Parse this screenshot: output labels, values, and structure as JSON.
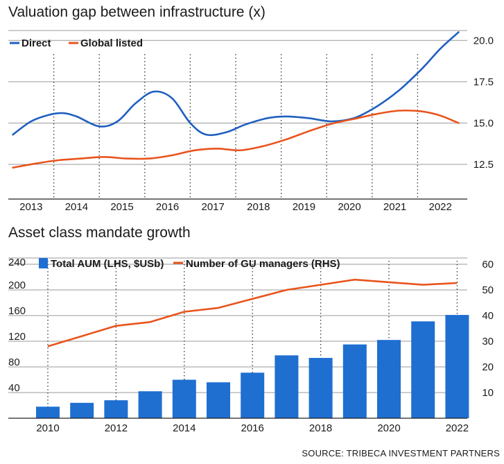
{
  "colors": {
    "direct": "#1f5fbf",
    "global": "#e8541c",
    "bar": "#1f6fd1",
    "grid": "#555555",
    "axis": "#333333"
  },
  "chart_data": [
    {
      "type": "line",
      "title": "Valuation gap between infrastructure (x)",
      "x_ticks": [
        "2013",
        "2014",
        "2015",
        "2016",
        "2017",
        "2018",
        "2019",
        "2020",
        "2021",
        "2022"
      ],
      "y_ticks": [
        "20.0",
        "17.5",
        "15.0",
        "12.5"
      ],
      "ylim": [
        10.4,
        20.6
      ],
      "y_axis_side": "right",
      "legend": "top-left",
      "series": [
        {
          "name": "Direct",
          "color": "#1f5fbf",
          "x": [
            2012.6,
            2013.0,
            2013.4,
            2013.7,
            2014.0,
            2014.5,
            2014.9,
            2015.3,
            2015.7,
            2016.1,
            2016.5,
            2016.85,
            2017.3,
            2017.7,
            2018.2,
            2018.6,
            2019.1,
            2019.6,
            2020.1,
            2020.6,
            2021.1,
            2021.6,
            2022.0,
            2022.4
          ],
          "values": [
            14.3,
            15.1,
            15.5,
            15.6,
            15.4,
            14.8,
            15.1,
            16.2,
            16.9,
            16.5,
            15.0,
            14.3,
            14.45,
            14.9,
            15.3,
            15.4,
            15.3,
            15.1,
            15.3,
            16.0,
            17.0,
            18.3,
            19.5,
            20.5
          ]
        },
        {
          "name": "Global listed",
          "color": "#e8541c",
          "x": [
            2012.6,
            2013.1,
            2013.6,
            2014.1,
            2014.6,
            2015.1,
            2015.6,
            2016.1,
            2016.6,
            2017.1,
            2017.6,
            2018.1,
            2018.6,
            2019.1,
            2019.6,
            2020.1,
            2020.6,
            2021.1,
            2021.6,
            2022.0,
            2022.4
          ],
          "values": [
            12.3,
            12.55,
            12.75,
            12.85,
            12.95,
            12.85,
            12.85,
            13.05,
            13.35,
            13.45,
            13.35,
            13.6,
            14.0,
            14.5,
            14.95,
            15.25,
            15.55,
            15.75,
            15.7,
            15.45,
            15.0
          ]
        }
      ]
    },
    {
      "type": "bar",
      "title": "Asset class mandate growth",
      "legend": "top-left",
      "x_ticks": [
        "2010",
        "2012",
        "2014",
        "2016",
        "2018",
        "2020",
        "2022"
      ],
      "left_ticks": [
        "240",
        "200",
        "160",
        "120",
        "80",
        "40"
      ],
      "right_ticks": [
        "60",
        "50",
        "40",
        "30",
        "20",
        "10"
      ],
      "ylim_left": [
        0,
        240
      ],
      "ylim_right": [
        0,
        60
      ],
      "categories": [
        "2010",
        "2011",
        "2012",
        "2013",
        "2014",
        "2015",
        "2016",
        "2017",
        "2018",
        "2019",
        "2020",
        "2021",
        "2022"
      ],
      "series": [
        {
          "name": "Total AUM (LHS, $USb)",
          "type": "bar",
          "axis": "left",
          "color": "#1f6fd1",
          "values": [
            18,
            24,
            28,
            42,
            60,
            56,
            71,
            98,
            94,
            115,
            122,
            151,
            161
          ]
        },
        {
          "name": "Number of GU managers (RHS)",
          "type": "line",
          "axis": "right",
          "color": "#e8541c",
          "values": [
            28,
            32,
            36,
            37.5,
            41.5,
            43,
            46.5,
            50,
            52,
            54,
            53,
            52,
            52.7
          ]
        }
      ]
    }
  ],
  "source": "SOURCE: TRIBECA INVESTMENT PARTNERS"
}
